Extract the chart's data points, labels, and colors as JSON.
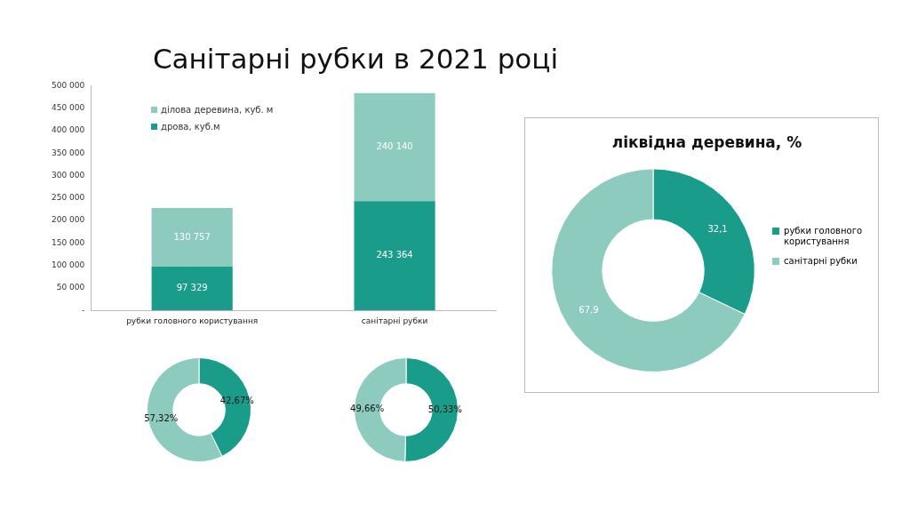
{
  "chart_data": [
    {
      "type": "bar",
      "title": "Санітарні рубки в 2021 році",
      "categories": [
        "рубки головного користування",
        "санітарні рубки"
      ],
      "stacked": true,
      "series": [
        {
          "name": "дрова, куб.м",
          "color": "#1a9c8a",
          "values": [
            97329,
            243364
          ],
          "value_labels": [
            "97 329",
            "243 364"
          ]
        },
        {
          "name": "ділова деревина, куб. м",
          "color": "#8ccbbd",
          "values": [
            130757,
            240140
          ],
          "value_labels": [
            "130 757",
            "240 140"
          ]
        }
      ],
      "ylim": [
        0,
        500000
      ],
      "yticks": [
        {
          "value": 0,
          "label": "-"
        },
        {
          "value": 50000,
          "label": "50 000"
        },
        {
          "value": 100000,
          "label": "100 000"
        },
        {
          "value": 150000,
          "label": "150 000"
        },
        {
          "value": 200000,
          "label": "200 000"
        },
        {
          "value": 250000,
          "label": "250 000"
        },
        {
          "value": 300000,
          "label": "300 000"
        },
        {
          "value": 350000,
          "label": "350 000"
        },
        {
          "value": 400000,
          "label": "400 000"
        },
        {
          "value": 450000,
          "label": "450 000"
        },
        {
          "value": 500000,
          "label": "500 000"
        }
      ],
      "grid": false,
      "legend": "top left"
    },
    {
      "type": "donut",
      "title": "ліквідна деревина, %",
      "categories": [
        "рубки головного користування",
        "санітарні рубки"
      ],
      "values": [
        32.1,
        67.9
      ],
      "colors": [
        "#1a9c8a",
        "#8ccbbd"
      ],
      "value_labels": [
        "32,1",
        "67,9"
      ],
      "legend": "right"
    },
    {
      "type": "donut",
      "categories": [
        null,
        null
      ],
      "values": [
        42.67,
        57.32
      ],
      "colors": [
        "#1a9c8a",
        "#8ccbbd"
      ],
      "value_labels": [
        "42,67%",
        "57,32%"
      ]
    },
    {
      "type": "donut",
      "categories": [
        null,
        null
      ],
      "values": [
        50.33,
        49.66
      ],
      "colors": [
        "#1a9c8a",
        "#8ccbbd"
      ],
      "value_labels": [
        "50,33%",
        "49,66%"
      ]
    }
  ]
}
